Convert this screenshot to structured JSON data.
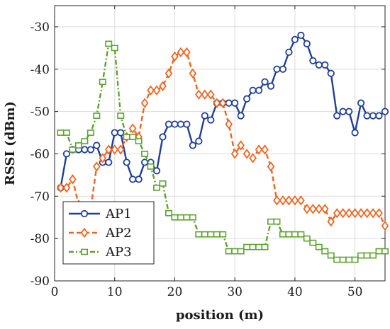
{
  "chart_data": {
    "type": "line",
    "title": "",
    "xlabel": "position (m)",
    "ylabel": "RSSI (dBm)",
    "xlim": [
      0,
      55
    ],
    "ylim": [
      -90,
      -25
    ],
    "xticks": [
      0,
      10,
      20,
      30,
      40,
      50
    ],
    "yticks": [
      -90,
      -80,
      -70,
      -60,
      -50,
      -40,
      -30
    ],
    "grid": true,
    "legend_position": "bottom-left",
    "series": [
      {
        "name": "AP1",
        "color": "#1f3f99",
        "line_style": "solid",
        "marker": "circle",
        "x": [
          1,
          2,
          3,
          4,
          5,
          6,
          7,
          8,
          9,
          10,
          11,
          12,
          13,
          14,
          15,
          16,
          17,
          18,
          19,
          20,
          21,
          22,
          23,
          24,
          25,
          26,
          27,
          28,
          29,
          30,
          31,
          32,
          33,
          34,
          35,
          36,
          37,
          38,
          39,
          40,
          41,
          42,
          43,
          44,
          45,
          46,
          47,
          48,
          49,
          50,
          51,
          52,
          53,
          54,
          55
        ],
        "y": [
          -68,
          -60,
          -59,
          -59,
          -59,
          -59,
          -58,
          -62,
          -62,
          -55,
          -55,
          -62,
          -66,
          -66,
          -62,
          -62,
          -64,
          -56,
          -53,
          -53,
          -53,
          -53,
          -58,
          -57,
          -51,
          -52,
          -48,
          -48,
          -48,
          -48,
          -51,
          -47,
          -45,
          -45,
          -43,
          -44,
          -40,
          -40,
          -36,
          -33,
          -32,
          -34,
          -38,
          -39,
          -39,
          -41,
          -51,
          -50,
          -50,
          -55,
          -48,
          -51,
          -51,
          -51,
          -50
        ]
      },
      {
        "name": "AP2",
        "color": "#f2641e",
        "line_style": "dashed",
        "marker": "diamond",
        "x": [
          1,
          2,
          3,
          4,
          5,
          6,
          7,
          8,
          9,
          10,
          11,
          12,
          13,
          14,
          15,
          16,
          17,
          18,
          19,
          20,
          21,
          22,
          23,
          24,
          25,
          26,
          27,
          28,
          29,
          30,
          31,
          32,
          33,
          34,
          35,
          36,
          37,
          38,
          39,
          40,
          41,
          42,
          43,
          44,
          45,
          46,
          47,
          48,
          49,
          50,
          51,
          52,
          53,
          54,
          55
        ],
        "y": [
          -68,
          -68,
          -66,
          -72,
          -74,
          -73,
          -63,
          -61,
          -59,
          -59,
          -59,
          -56,
          -54,
          -56,
          -48,
          -45,
          -45,
          -44,
          -41,
          -37,
          -36,
          -36,
          -41,
          -46,
          -46,
          -46,
          -48,
          -48,
          -53,
          -60,
          -58,
          -60,
          -61,
          -59,
          -59,
          -63,
          -71,
          -71,
          -71,
          -71,
          -71,
          -73,
          -73,
          -73,
          -73,
          -76,
          -74,
          -74,
          -74,
          -74,
          -74,
          -74,
          -74,
          -74,
          -77
        ]
      },
      {
        "name": "AP3",
        "color": "#5aa52a",
        "line_style": "dashdot",
        "marker": "square",
        "x": [
          1,
          2,
          3,
          4,
          5,
          6,
          7,
          8,
          9,
          10,
          11,
          12,
          13,
          14,
          15,
          16,
          17,
          18,
          19,
          20,
          21,
          22,
          23,
          24,
          25,
          26,
          27,
          28,
          29,
          30,
          31,
          32,
          33,
          34,
          35,
          36,
          37,
          38,
          39,
          40,
          41,
          42,
          43,
          44,
          45,
          46,
          47,
          48,
          49,
          50,
          51,
          52,
          53,
          54,
          55
        ],
        "y": [
          -55,
          -55,
          -59,
          -58,
          -57,
          -55,
          -51,
          -43,
          -34,
          -35,
          -51,
          -56,
          -56,
          -57,
          -60,
          -63,
          -68,
          -67,
          -74,
          -75,
          -75,
          -75,
          -75,
          -79,
          -79,
          -79,
          -79,
          -79,
          -83,
          -83,
          -83,
          -82,
          -82,
          -82,
          -82,
          -76,
          -76,
          -79,
          -79,
          -79,
          -79,
          -80,
          -81,
          -82,
          -83,
          -84,
          -85,
          -85,
          -85,
          -85,
          -84,
          -84,
          -84,
          -83,
          -83
        ]
      }
    ]
  }
}
